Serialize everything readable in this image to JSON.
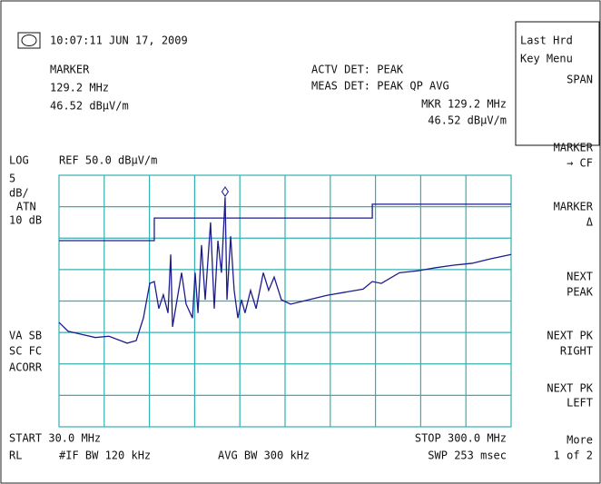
{
  "header": {
    "timestamp": "10:07:11 JUN 17, 2009",
    "marker_title": "MARKER",
    "marker_freq": "129.2 MHz",
    "marker_level": "46.52 dBµV/m",
    "actv_det": "ACTV DET: PEAK",
    "meas_det": "MEAS DET: PEAK QP AVG",
    "mkr_freq": "MKR 129.2 MHz",
    "mkr_level": "46.52 dBµV/m"
  },
  "left_labels": {
    "scale": "LOG",
    "ref": "REF 50.0 dBµV/m",
    "div": "5",
    "div_unit": "dB/",
    "atn": "ATN",
    "atn_value": "10 dB",
    "va_sb": "VA SB",
    "sc_fc": "SC FC",
    "acorr": "ACORR"
  },
  "footer": {
    "start": "START 30.0 MHz",
    "stop": "STOP 300.0 MHz",
    "rl": "RL",
    "if_bw": "#IF BW 120 kHz",
    "avg_bw": "AVG BW 300 kHz",
    "sweep": "SWP 253 msec"
  },
  "softkeys": [
    {
      "lines": [
        "Last Hrd",
        "Key Menu"
      ]
    },
    {
      "lines": [
        "SPAN"
      ]
    },
    {
      "lines": [
        "MARKER",
        "→ CF"
      ]
    },
    {
      "lines": [
        "MARKER",
        "Δ"
      ]
    },
    {
      "lines": [
        "NEXT",
        "PEAK"
      ]
    },
    {
      "lines": [
        "NEXT PK",
        "RIGHT"
      ]
    },
    {
      "lines": [
        "NEXT PK",
        "LEFT"
      ]
    },
    {
      "lines": [
        "More",
        "1 of 2"
      ]
    }
  ],
  "chart_data": {
    "type": "line",
    "xlim": [
      30,
      300
    ],
    "ylim": [
      10,
      50
    ],
    "series": [
      {
        "name": "trace",
        "color": "#1c1c8e",
        "x": [
          30,
          35.4,
          43.6,
          51.7,
          59.8,
          70.7,
          76.1,
          80.4,
          84.2,
          86.9,
          89.6,
          92.3,
          95.1,
          96.7,
          97.8,
          100.5,
          103.2,
          105.9,
          109.7,
          111.3,
          113.0,
          115.1,
          117.3,
          120.5,
          122.7,
          124.9,
          127.0,
          129.2,
          130.3,
          132.5,
          134.6,
          136.8,
          139.0,
          141.1,
          144.4,
          147.7,
          152.0,
          155.2,
          158.5,
          162.8,
          168.3,
          179.1,
          190.0,
          200.8,
          211.6,
          217.1,
          222.5,
          233.3,
          244.1,
          255.0,
          265.8,
          276.7,
          287.5,
          300
        ],
        "values": [
          26.6,
          25.2,
          24.7,
          24.2,
          24.4,
          23.3,
          23.7,
          27.3,
          32.8,
          33.1,
          28.8,
          31.0,
          28.1,
          37.4,
          25.9,
          30.2,
          34.5,
          29.5,
          27.3,
          34.5,
          28.1,
          38.9,
          30.2,
          42.5,
          28.8,
          39.6,
          34.5,
          46.52,
          30.2,
          40.3,
          31.7,
          27.3,
          30.2,
          28.1,
          31.7,
          28.8,
          34.5,
          31.7,
          33.8,
          30.2,
          29.5,
          30.2,
          30.9,
          31.4,
          31.9,
          33.1,
          32.8,
          34.5,
          34.8,
          35.3,
          35.7,
          36.0,
          36.7,
          37.4
        ]
      },
      {
        "name": "limit",
        "color": "#1c1c8e",
        "x": [
          30,
          86.9,
          86.9,
          217.1,
          217.1,
          300
        ],
        "values": [
          39.6,
          39.6,
          43.2,
          43.2,
          45.4,
          45.4
        ]
      }
    ]
  }
}
